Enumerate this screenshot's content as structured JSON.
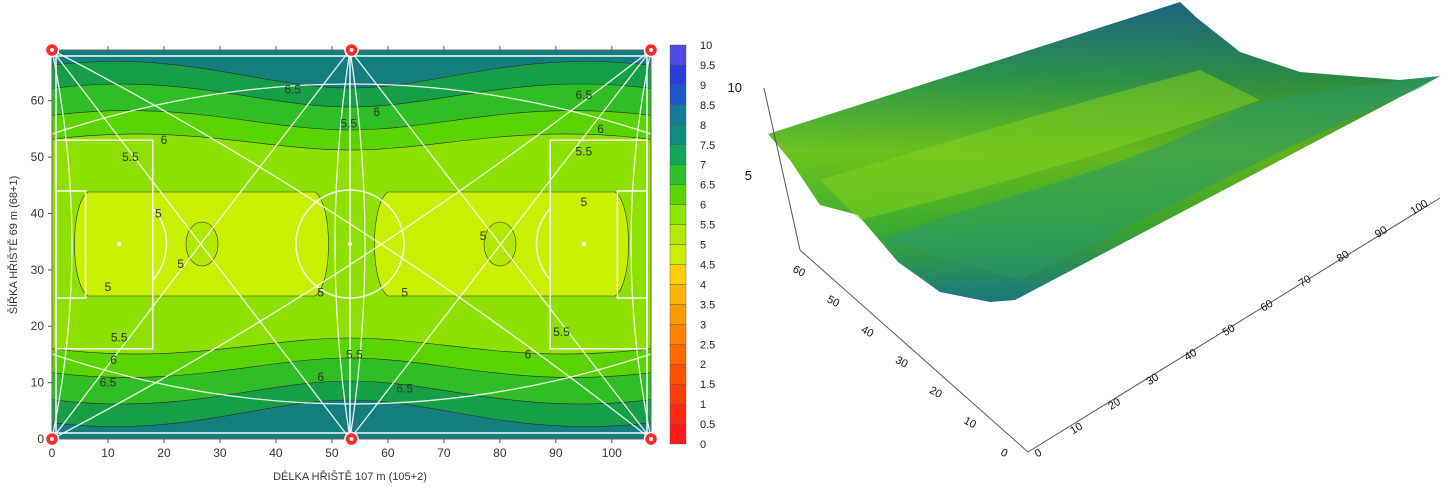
{
  "chart_data": [
    {
      "type": "heatmap",
      "title": "",
      "xlabel": "DÉLKA HŘIŠTĚ 107 m (105+2)",
      "ylabel": "ŠÍŘKA HŘIŠTĚ 69 m (68+1)",
      "xlim": [
        0,
        107
      ],
      "ylim": [
        0,
        69
      ],
      "xticks": [
        "0",
        "10",
        "20",
        "30",
        "40",
        "50",
        "60",
        "70",
        "80",
        "90",
        "100"
      ],
      "yticks": [
        "0",
        "10",
        "20",
        "30",
        "40",
        "50",
        "60"
      ],
      "colorbar": {
        "labels": [
          "0",
          "0.5",
          "1",
          "1.5",
          "2",
          "2.5",
          "3",
          "3.5",
          "4",
          "4.5",
          "5",
          "5.5",
          "6",
          "6.5",
          "7",
          "7.5",
          "8",
          "8.5",
          "9",
          "9.5",
          "10"
        ],
        "colors": [
          "#ff1a1a",
          "#ff2a10",
          "#ff3d0a",
          "#ff5200",
          "#ff6a00",
          "#ff8200",
          "#ff9a00",
          "#ffb400",
          "#ffd000",
          "#c8f000",
          "#b4ea00",
          "#8ee600",
          "#5ad400",
          "#2cc02c",
          "#0ea858",
          "#0e8c7c",
          "#147a98",
          "#1e56c8",
          "#2b3dd8",
          "#4f4ae0",
          "#7e6ae6"
        ]
      },
      "contour_labels": [
        {
          "text": "5",
          "x": 10,
          "y": 27
        },
        {
          "text": "5",
          "x": 19,
          "y": 40
        },
        {
          "text": "5",
          "x": 23,
          "y": 31
        },
        {
          "text": "5",
          "x": 48,
          "y": 26
        },
        {
          "text": "5",
          "x": 63,
          "y": 26
        },
        {
          "text": "5",
          "x": 77,
          "y": 36
        },
        {
          "text": "5",
          "x": 95,
          "y": 42
        },
        {
          "text": "5.5",
          "x": 14,
          "y": 50
        },
        {
          "text": "5.5",
          "x": 53,
          "y": 56
        },
        {
          "text": "5.5",
          "x": 95,
          "y": 51
        },
        {
          "text": "5.5",
          "x": 12,
          "y": 18
        },
        {
          "text": "5.5",
          "x": 54,
          "y": 15
        },
        {
          "text": "5.5",
          "x": 91,
          "y": 19
        },
        {
          "text": "6",
          "x": 20,
          "y": 53
        },
        {
          "text": "6",
          "x": 58,
          "y": 58
        },
        {
          "text": "6",
          "x": 98,
          "y": 55
        },
        {
          "text": "6",
          "x": 11,
          "y": 14
        },
        {
          "text": "6",
          "x": 48,
          "y": 11
        },
        {
          "text": "6",
          "x": 85,
          "y": 15
        },
        {
          "text": "6.5",
          "x": 43,
          "y": 62
        },
        {
          "text": "6.5",
          "x": 95,
          "y": 61
        },
        {
          "text": "6.5",
          "x": 10,
          "y": 10
        },
        {
          "text": "6.5",
          "x": 63,
          "y": 9
        }
      ],
      "markers": [
        {
          "x": 0,
          "y": 0
        },
        {
          "x": 53.5,
          "y": 0
        },
        {
          "x": 107,
          "y": 0
        },
        {
          "x": 0,
          "y": 69
        },
        {
          "x": 53.5,
          "y": 69
        },
        {
          "x": 107,
          "y": 69
        }
      ]
    },
    {
      "type": "surface3d",
      "title": "",
      "z_ticks": [
        "5",
        "10"
      ],
      "y_ticks": [
        "0",
        "10",
        "20",
        "30",
        "40",
        "50",
        "60"
      ],
      "x_ticks": [
        "0",
        "10",
        "20",
        "30",
        "40",
        "50",
        "60",
        "70",
        "80",
        "90",
        "100"
      ]
    }
  ]
}
